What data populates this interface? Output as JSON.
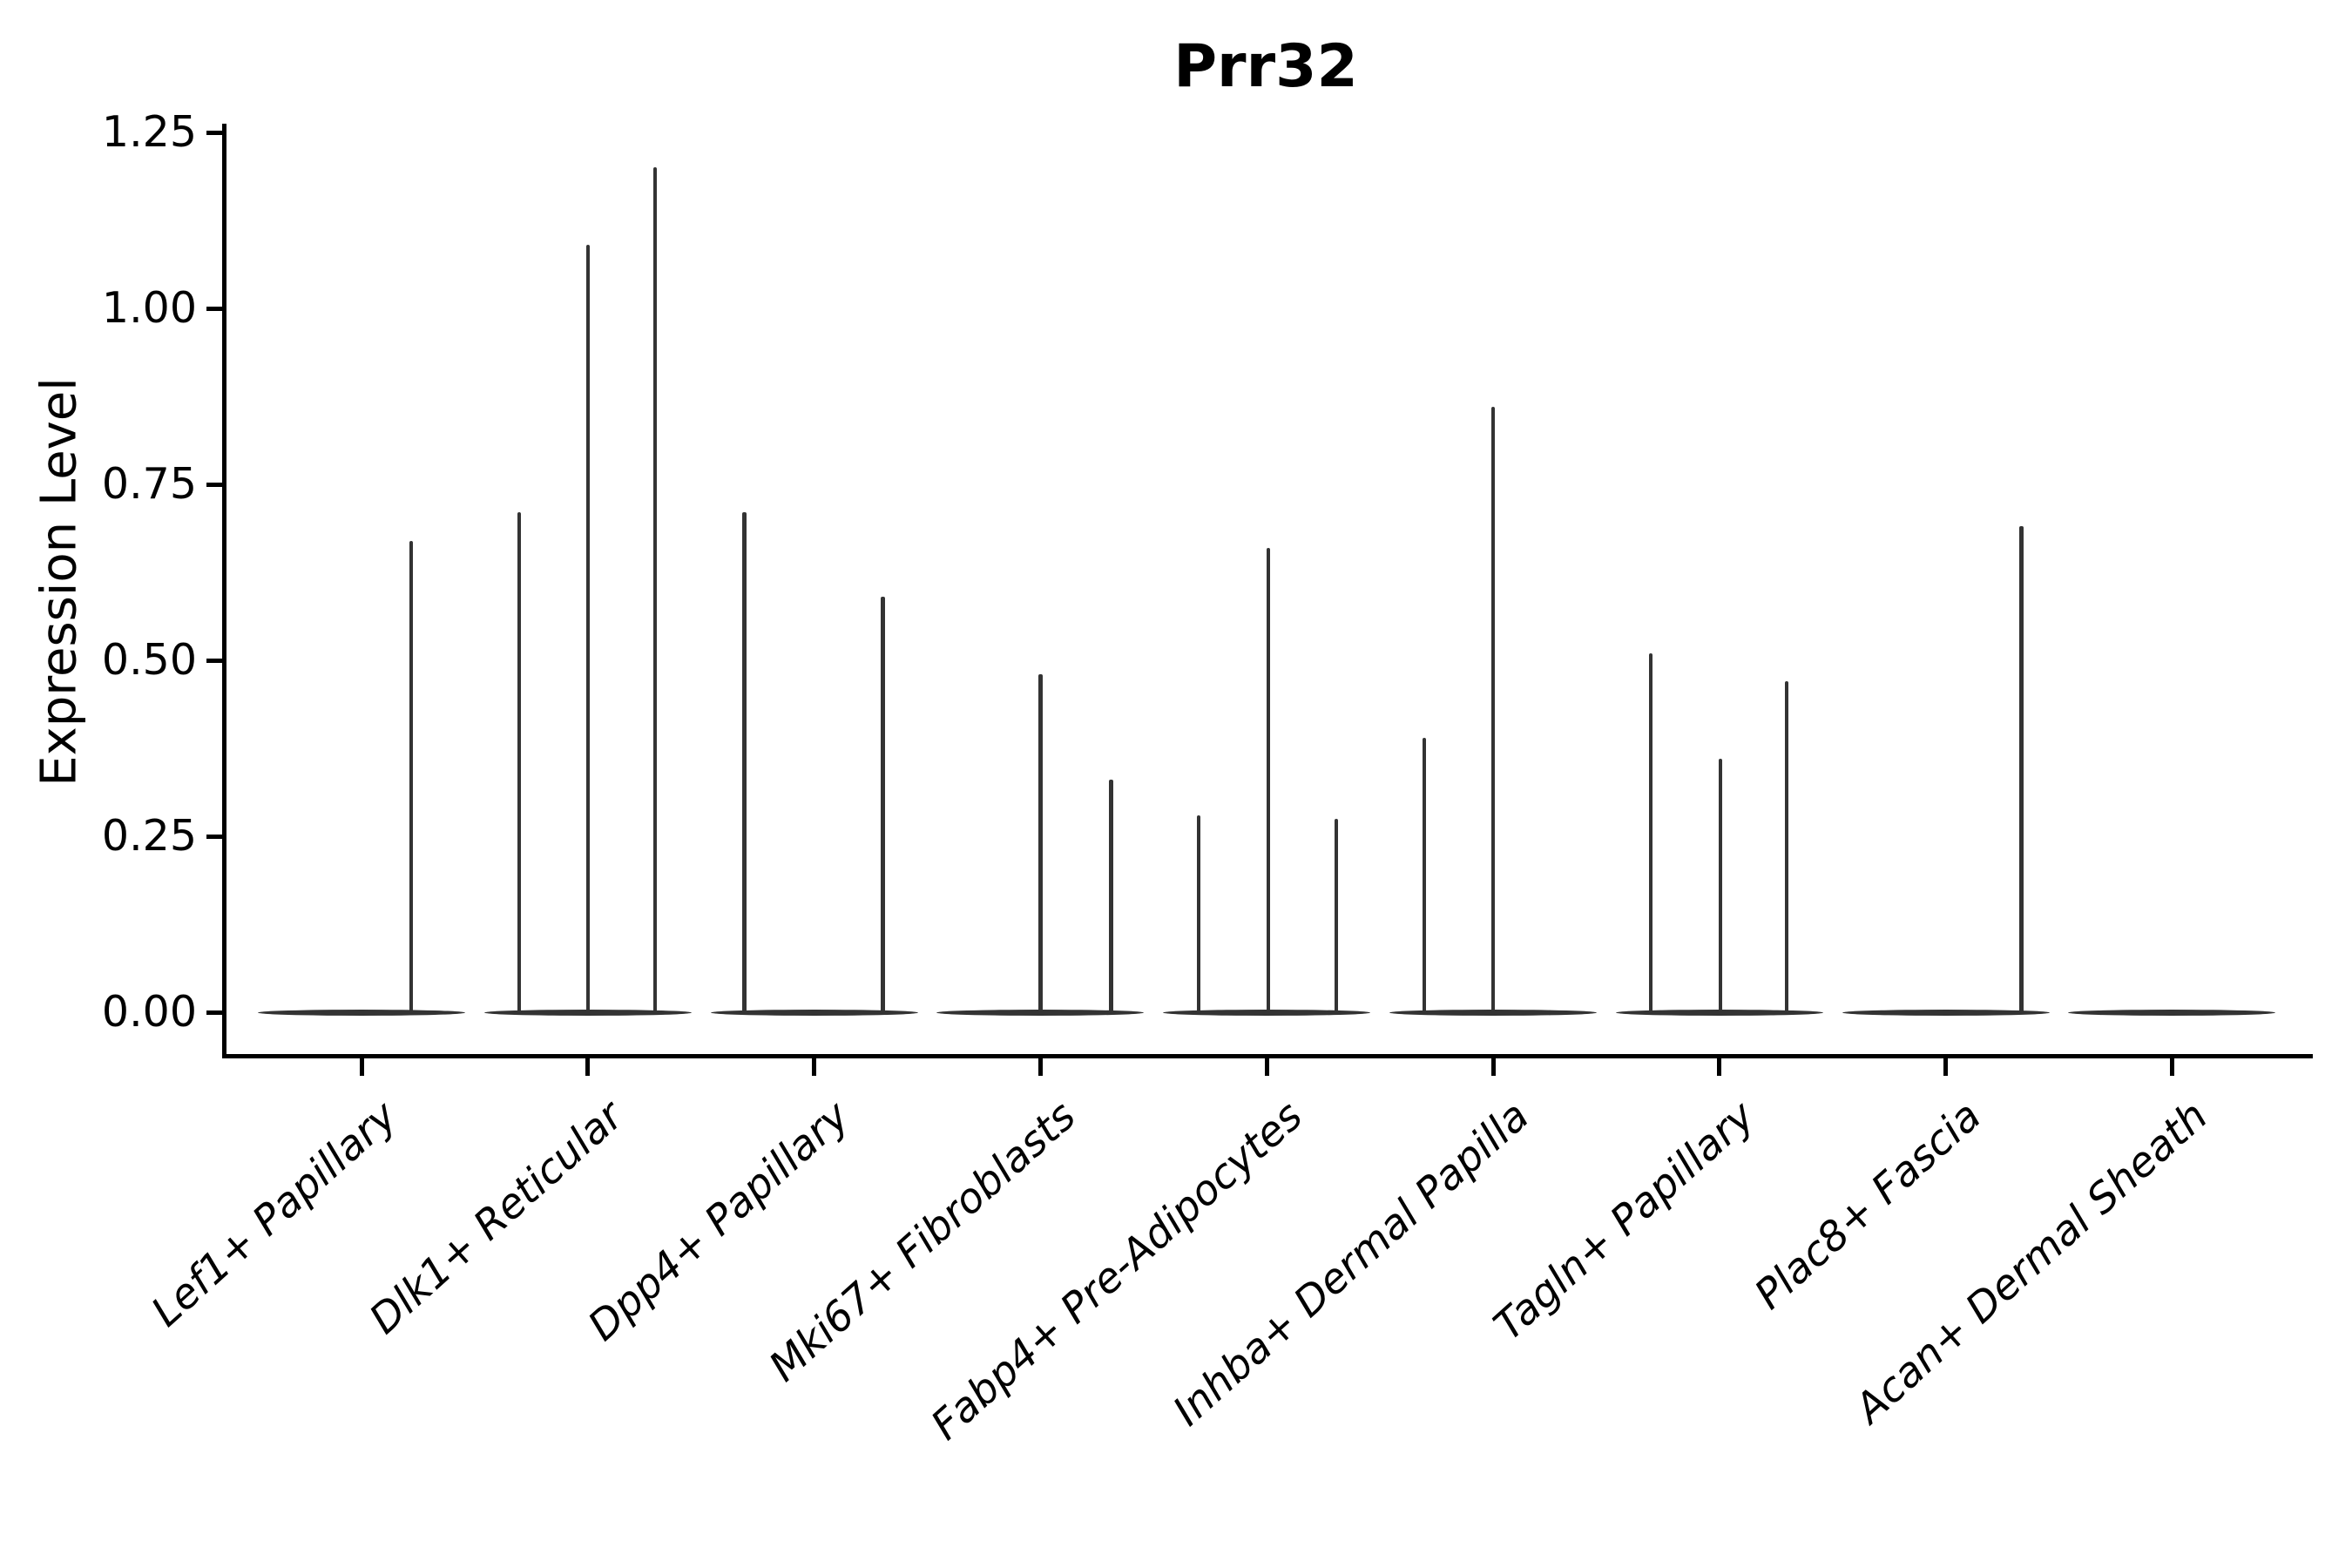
{
  "title": "Prr32",
  "y_axis": {
    "label": "Expression Level",
    "tick_labels": [
      "0.00",
      "0.25",
      "0.50",
      "0.75",
      "1.00",
      "1.25"
    ]
  },
  "chart_data": {
    "type": "violin",
    "title": "Prr32",
    "xlabel": "",
    "ylabel": "Expression Level",
    "ylim": [
      -0.06,
      1.26
    ],
    "y_ticks": [
      0.0,
      0.25,
      0.5,
      0.75,
      1.0,
      1.25
    ],
    "grid": false,
    "legend": null,
    "ink_color": "#333333",
    "axis_color": "#000000",
    "categories": [
      "Lef1+ Papillary",
      "Dlk1+ Reticular",
      "Dpp4+ Papillary",
      "Mki67+ Fibroblasts",
      "Fabp4+ Pre-Adipocytes",
      "Inhba+ Dermal Papilla",
      "Tagln+ Papillary",
      "Plac8+ Fascia",
      "Acan+ Dermal Sheath"
    ],
    "series": [
      {
        "name": "Lef1+ Papillary",
        "baseline_value": 0,
        "spikes": [
          {
            "dx": 57,
            "value": 0.67
          }
        ]
      },
      {
        "name": "Dlk1+ Reticular",
        "baseline_value": 0,
        "spikes": [
          {
            "dx": -79,
            "value": 0.71
          },
          {
            "dx": 0,
            "value": 1.09
          },
          {
            "dx": 77,
            "value": 1.2
          }
        ]
      },
      {
        "name": "Dpp4+ Papillary",
        "baseline_value": 0,
        "spikes": [
          {
            "dx": -80,
            "value": 0.71
          },
          {
            "dx": 79,
            "value": 0.59
          }
        ]
      },
      {
        "name": "Mki67+ Fibroblasts",
        "baseline_value": 0,
        "spikes": [
          {
            "dx": 0,
            "value": 0.48
          },
          {
            "dx": 81,
            "value": 0.33
          }
        ]
      },
      {
        "name": "Fabp4+ Pre-Adipocytes",
        "baseline_value": 0,
        "spikes": [
          {
            "dx": -78,
            "value": 0.28
          },
          {
            "dx": 2,
            "value": 0.66
          },
          {
            "dx": 80,
            "value": 0.275
          }
        ]
      },
      {
        "name": "Inhba+ Dermal Papilla",
        "baseline_value": 0,
        "spikes": [
          {
            "dx": -79,
            "value": 0.39
          },
          {
            "dx": 0,
            "value": 0.86
          }
        ]
      },
      {
        "name": "Tagln+ Papillary",
        "baseline_value": 0,
        "spikes": [
          {
            "dx": -79,
            "value": 0.51
          },
          {
            "dx": 1,
            "value": 0.36
          },
          {
            "dx": 77,
            "value": 0.47
          }
        ]
      },
      {
        "name": "Plac8+ Fascia",
        "baseline_value": 0,
        "spikes": [
          {
            "dx": 87,
            "value": 0.69
          }
        ]
      },
      {
        "name": "Acan+ Dermal Sheath",
        "baseline_value": 0,
        "spikes": []
      }
    ]
  }
}
